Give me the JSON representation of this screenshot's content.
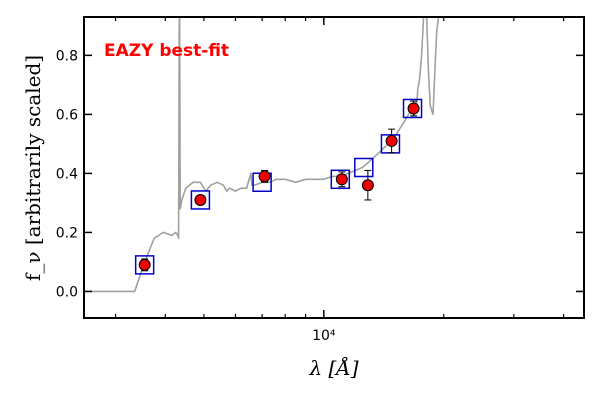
{
  "chart_data": {
    "type": "scatter",
    "title": "",
    "annotation": {
      "text": "EAZY best-fit",
      "color": "#ff0000"
    },
    "xlabel": "λ [Å]",
    "ylabel": "f_ν [arbitrarily scaled]",
    "x_scale": "log",
    "xlim": [
      2500,
      45000
    ],
    "ylim": [
      -0.09,
      0.93
    ],
    "yticks": [
      0.0,
      0.2,
      0.4,
      0.6,
      0.8
    ],
    "ytick_labels": [
      "0.0",
      "0.2",
      "0.4",
      "0.6",
      "0.8"
    ],
    "xticks_major": [
      10000
    ],
    "xtick_labels": [
      "10⁴"
    ],
    "xticks_minor": [
      3000,
      4000,
      5000,
      6000,
      7000,
      8000,
      9000,
      20000,
      30000,
      40000
    ],
    "grid": false,
    "legend": "none",
    "series": [
      {
        "kind": "sed_curve",
        "color": "#a0a0a0",
        "x": [
          2500,
          3350,
          3450,
          3550,
          3650,
          3750,
          3850,
          3950,
          4150,
          4250,
          4300,
          4320,
          4335,
          4345,
          4360,
          4400,
          4500,
          4700,
          4900,
          5050,
          5200,
          5400,
          5600,
          5700,
          5800,
          6000,
          6200,
          6400,
          6560,
          6600,
          6700,
          7000,
          7300,
          7600,
          8000,
          8500,
          9000,
          9500,
          10000,
          10500,
          11000,
          11500,
          12000,
          12500,
          13000,
          13500,
          14000,
          14500,
          15000,
          15500,
          16000,
          16500,
          16700,
          16900,
          17000,
          17100,
          17200,
          17400,
          17600,
          17800,
          18100,
          18300,
          18500,
          18800,
          19000,
          19200,
          19500
        ],
        "y": [
          0.0,
          0.0,
          0.05,
          0.1,
          0.14,
          0.18,
          0.19,
          0.2,
          0.19,
          0.2,
          0.19,
          0.18,
          0.9,
          0.95,
          0.28,
          0.31,
          0.35,
          0.37,
          0.37,
          0.34,
          0.36,
          0.37,
          0.36,
          0.34,
          0.35,
          0.34,
          0.35,
          0.35,
          0.4,
          0.36,
          0.36,
          0.37,
          0.37,
          0.38,
          0.38,
          0.37,
          0.38,
          0.38,
          0.38,
          0.39,
          0.39,
          0.4,
          0.41,
          0.42,
          0.44,
          0.46,
          0.48,
          0.5,
          0.52,
          0.55,
          0.58,
          0.61,
          0.63,
          0.6,
          0.64,
          0.62,
          0.68,
          0.72,
          0.8,
          0.93,
          0.95,
          0.75,
          0.63,
          0.6,
          0.74,
          0.88,
          0.95
        ]
      },
      {
        "kind": "model_photometry",
        "marker": "open-square",
        "color": "#0000cc",
        "x": [
          3550,
          4900,
          7000,
          11000,
          12600,
          14700,
          16700
        ],
        "y": [
          0.09,
          0.31,
          0.37,
          0.38,
          0.42,
          0.5,
          0.62
        ]
      },
      {
        "kind": "observed_photometry",
        "marker": "filled-circle",
        "color": "#ee0000",
        "x": [
          3550,
          4900,
          7100,
          11100,
          12900,
          14800,
          16800
        ],
        "y": [
          0.09,
          0.31,
          0.39,
          0.38,
          0.36,
          0.51,
          0.62
        ],
        "err": [
          0.02,
          0.015,
          0.02,
          0.025,
          0.05,
          0.04,
          0.025
        ]
      }
    ]
  }
}
